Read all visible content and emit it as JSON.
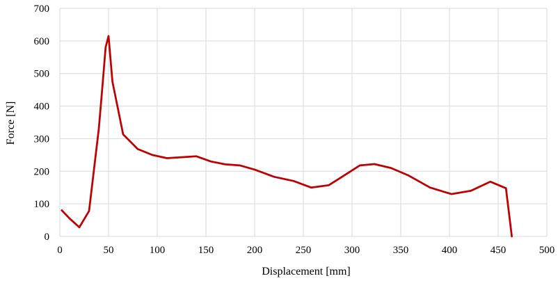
{
  "chart_data": {
    "type": "line",
    "title": "",
    "xlabel": "Displacement [mm]",
    "ylabel": "Force [N]",
    "xlim": [
      0,
      500
    ],
    "ylim": [
      0,
      700
    ],
    "xticks": [
      0,
      50,
      100,
      150,
      200,
      250,
      300,
      350,
      400,
      450,
      500
    ],
    "yticks": [
      0,
      100,
      200,
      300,
      400,
      500,
      600,
      700
    ],
    "x_tick_labels": [
      "0",
      "50",
      "100",
      "150",
      "200",
      "250",
      "300",
      "350",
      "400",
      "450",
      "500"
    ],
    "y_tick_labels": [
      "0",
      "100",
      "200",
      "300",
      "400",
      "500",
      "600",
      "700"
    ],
    "grid": true,
    "legend": "none",
    "series": [
      {
        "color": "#c00000",
        "x": [
          2,
          10,
          20,
          30,
          40,
          44,
          47,
          50,
          54,
          65,
          80,
          95,
          110,
          125,
          140,
          155,
          170,
          185,
          200,
          220,
          240,
          258,
          276,
          295,
          308,
          323,
          340,
          358,
          380,
          402,
          422,
          442,
          458,
          463,
          464
        ],
        "y": [
          80,
          55,
          28,
          78,
          330,
          470,
          580,
          615,
          475,
          313,
          268,
          250,
          240,
          243,
          246,
          230,
          221,
          218,
          205,
          183,
          170,
          150,
          157,
          193,
          218,
          222,
          210,
          187,
          150,
          130,
          140,
          168,
          148,
          25,
          0
        ]
      }
    ]
  }
}
